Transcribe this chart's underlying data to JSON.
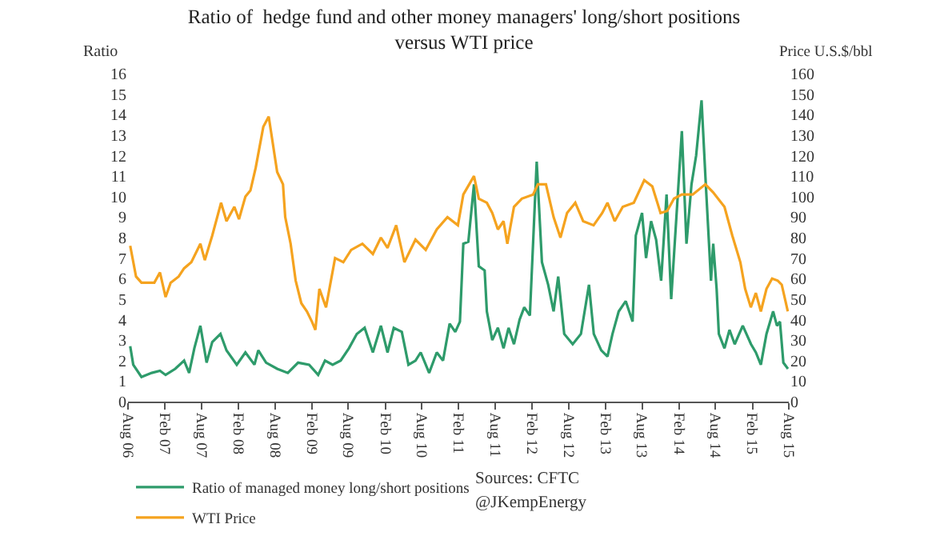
{
  "chart_data": {
    "type": "line",
    "title": "Ratio of  hedge fund and other money managers' long/short positions\nversus WTI price",
    "ylabel": "Ratio",
    "y2label": "Price U.S.$/bbl",
    "xlim": [
      "2006-08",
      "2015-08"
    ],
    "xticks": [
      {
        "value": "2006-08",
        "label": "Aug 06"
      },
      {
        "value": "2007-02",
        "label": "Feb 07"
      },
      {
        "value": "2007-08",
        "label": "Aug 07"
      },
      {
        "value": "2008-02",
        "label": "Feb 08"
      },
      {
        "value": "2008-08",
        "label": "Aug 08"
      },
      {
        "value": "2009-02",
        "label": "Feb 09"
      },
      {
        "value": "2009-08",
        "label": "Aug 09"
      },
      {
        "value": "2010-02",
        "label": "Feb 10"
      },
      {
        "value": "2010-08",
        "label": "Aug 10"
      },
      {
        "value": "2011-02",
        "label": "Feb 11"
      },
      {
        "value": "2011-08",
        "label": "Aug 11"
      },
      {
        "value": "2012-02",
        "label": "Feb 12"
      },
      {
        "value": "2012-08",
        "label": "Aug 12"
      },
      {
        "value": "2013-02",
        "label": "Feb 13"
      },
      {
        "value": "2013-08",
        "label": "Aug 13"
      },
      {
        "value": "2014-02",
        "label": "Feb 14"
      },
      {
        "value": "2014-08",
        "label": "Aug 14"
      },
      {
        "value": "2015-02",
        "label": "Feb 15"
      },
      {
        "value": "2015-08",
        "label": "Aug 15"
      }
    ],
    "ylim": [
      0,
      16
    ],
    "yticks": [
      0,
      1,
      2,
      3,
      4,
      5,
      6,
      7,
      8,
      9,
      10,
      11,
      12,
      13,
      14,
      15,
      16
    ],
    "y2lim": [
      0,
      160
    ],
    "y2ticks": [
      0,
      10,
      20,
      30,
      40,
      50,
      60,
      70,
      80,
      90,
      100,
      110,
      120,
      130,
      140,
      150,
      160
    ],
    "series": [
      {
        "name": "Ratio of managed money long/short positions",
        "color": "#2e9b6b",
        "x": [
          "2006-08-12",
          "2006-08-27",
          "2006-10-07",
          "2006-11-27",
          "2007-01-07",
          "2007-02-04",
          "2007-03-24",
          "2007-05-07",
          "2007-06-01",
          "2007-06-27",
          "2007-07-27",
          "2007-08-27",
          "2007-09-24",
          "2007-11-04",
          "2007-12-04",
          "2008-01-24",
          "2008-03-07",
          "2008-04-21",
          "2008-05-10",
          "2008-06-18",
          "2008-08-12",
          "2008-10-04",
          "2008-11-24",
          "2009-01-18",
          "2009-03-04",
          "2009-04-07",
          "2009-05-15",
          "2009-06-24",
          "2009-08-04",
          "2009-09-12",
          "2009-10-21",
          "2009-12-01",
          "2010-01-10",
          "2010-02-12",
          "2010-03-15",
          "2010-04-24",
          "2010-05-27",
          "2010-07-01",
          "2010-07-27",
          "2010-09-07",
          "2010-10-15",
          "2010-11-15",
          "2010-12-18",
          "2011-01-15",
          "2011-02-07",
          "2011-02-24",
          "2011-03-21",
          "2011-04-18",
          "2011-05-12",
          "2011-06-10",
          "2011-06-21",
          "2011-07-18",
          "2011-08-15",
          "2011-09-12",
          "2011-10-07",
          "2011-11-03",
          "2011-12-01",
          "2011-12-24",
          "2012-01-21",
          "2012-02-24",
          "2012-03-21",
          "2012-04-21",
          "2012-05-18",
          "2012-06-10",
          "2012-07-10",
          "2012-08-21",
          "2012-10-01",
          "2012-11-10",
          "2012-12-04",
          "2013-01-10",
          "2013-02-10",
          "2013-03-07",
          "2013-04-07",
          "2013-05-12",
          "2013-06-15",
          "2013-07-01",
          "2013-08-01",
          "2013-08-21",
          "2013-09-15",
          "2013-10-10",
          "2013-11-04",
          "2013-12-01",
          "2013-12-24",
          "2014-02-15",
          "2014-03-10",
          "2014-04-04",
          "2014-04-27",
          "2014-05-24",
          "2014-06-12",
          "2014-07-10",
          "2014-07-21",
          "2014-08-07",
          "2014-08-18",
          "2014-09-15",
          "2014-10-10",
          "2014-11-05",
          "2014-12-15",
          "2015-01-25",
          "2015-02-18",
          "2015-03-15",
          "2015-04-12",
          "2015-05-15",
          "2015-06-03",
          "2015-06-18",
          "2015-07-05",
          "2015-07-28"
        ],
        "values": [
          2.7,
          1.8,
          1.2,
          1.4,
          1.5,
          1.3,
          1.6,
          2.0,
          1.4,
          2.6,
          3.7,
          1.9,
          2.9,
          3.3,
          2.5,
          1.8,
          2.4,
          1.8,
          2.5,
          1.9,
          1.6,
          1.4,
          1.9,
          1.8,
          1.3,
          2.0,
          1.8,
          2.0,
          2.6,
          3.3,
          3.6,
          2.4,
          3.7,
          2.4,
          3.6,
          3.4,
          1.8,
          2.0,
          2.4,
          1.4,
          2.4,
          2.0,
          3.8,
          3.4,
          3.9,
          7.7,
          7.8,
          10.6,
          6.6,
          6.4,
          4.4,
          3.0,
          3.6,
          2.6,
          3.6,
          2.8,
          4.0,
          4.6,
          4.2,
          11.7,
          6.8,
          5.7,
          4.4,
          6.1,
          3.3,
          2.8,
          3.3,
          5.7,
          3.3,
          2.5,
          2.2,
          3.3,
          4.4,
          4.9,
          3.9,
          8.1,
          9.2,
          7.0,
          8.8,
          7.9,
          5.9,
          10.1,
          5.0,
          13.2,
          7.7,
          10.6,
          12.0,
          14.7,
          11.0,
          5.9,
          7.7,
          5.5,
          3.3,
          2.6,
          3.5,
          2.8,
          3.7,
          2.8,
          2.4,
          1.8,
          3.3,
          4.4,
          3.7,
          3.9,
          1.9,
          1.6
        ]
      },
      {
        "name": "WTI Price",
        "color": "#f5a31f",
        "axis": "y2",
        "x": [
          "2006-08-12",
          "2006-09-10",
          "2006-10-07",
          "2006-12-10",
          "2007-01-07",
          "2007-02-04",
          "2007-03-01",
          "2007-04-10",
          "2007-05-07",
          "2007-06-12",
          "2007-07-27",
          "2007-08-18",
          "2007-09-24",
          "2007-11-07",
          "2007-12-04",
          "2008-01-12",
          "2008-02-04",
          "2008-03-07",
          "2008-04-01",
          "2008-04-27",
          "2008-06-04",
          "2008-07-01",
          "2008-08-12",
          "2008-09-10",
          "2008-09-21",
          "2008-10-18",
          "2008-11-12",
          "2008-12-10",
          "2009-01-07",
          "2009-02-01",
          "2009-02-18",
          "2009-03-10",
          "2009-04-12",
          "2009-05-27",
          "2009-07-07",
          "2009-08-15",
          "2009-10-10",
          "2009-12-01",
          "2010-01-10",
          "2010-02-12",
          "2010-03-27",
          "2010-05-07",
          "2010-07-01",
          "2010-08-21",
          "2010-10-15",
          "2010-12-07",
          "2011-01-28",
          "2011-02-24",
          "2011-04-18",
          "2011-05-12",
          "2011-06-21",
          "2011-07-18",
          "2011-08-15",
          "2011-09-12",
          "2011-10-01",
          "2011-11-03",
          "2011-12-12",
          "2012-02-06",
          "2012-03-01",
          "2012-04-10",
          "2012-05-18",
          "2012-06-21",
          "2012-07-24",
          "2012-09-03",
          "2012-10-12",
          "2012-12-03",
          "2013-01-15",
          "2013-02-10",
          "2013-03-18",
          "2013-04-27",
          "2013-06-21",
          "2013-08-12",
          "2013-09-21",
          "2013-11-01",
          "2013-12-04",
          "2014-01-07",
          "2014-02-15",
          "2014-04-10",
          "2014-06-12",
          "2014-07-21",
          "2014-09-15",
          "2014-10-24",
          "2014-12-03",
          "2014-12-27",
          "2015-01-24",
          "2015-02-18",
          "2015-03-15",
          "2015-04-12",
          "2015-05-10",
          "2015-06-07",
          "2015-06-27",
          "2015-07-27"
        ],
        "values": [
          76,
          61,
          58,
          58,
          63,
          51,
          58,
          61,
          65,
          68,
          77,
          69,
          81,
          97,
          88,
          95,
          89,
          100,
          103,
          114,
          134,
          139,
          112,
          106,
          90,
          77,
          59,
          48,
          44,
          39,
          35,
          55,
          46,
          70,
          68,
          74,
          77,
          72,
          80,
          75,
          86,
          68,
          79,
          74,
          84,
          90,
          86,
          101,
          110,
          99,
          97,
          92,
          84,
          88,
          77,
          95,
          99,
          101,
          106,
          106,
          90,
          80,
          92,
          97,
          88,
          86,
          92,
          97,
          88,
          95,
          97,
          108,
          105,
          92,
          93,
          99,
          101,
          101,
          106,
          102,
          95,
          81,
          68,
          55,
          46,
          53,
          44,
          55,
          60,
          59,
          57,
          44
        ]
      }
    ],
    "legend": "bottom left",
    "annotations": [
      "Sources: CFTC",
      "@JKempEnergy"
    ]
  }
}
